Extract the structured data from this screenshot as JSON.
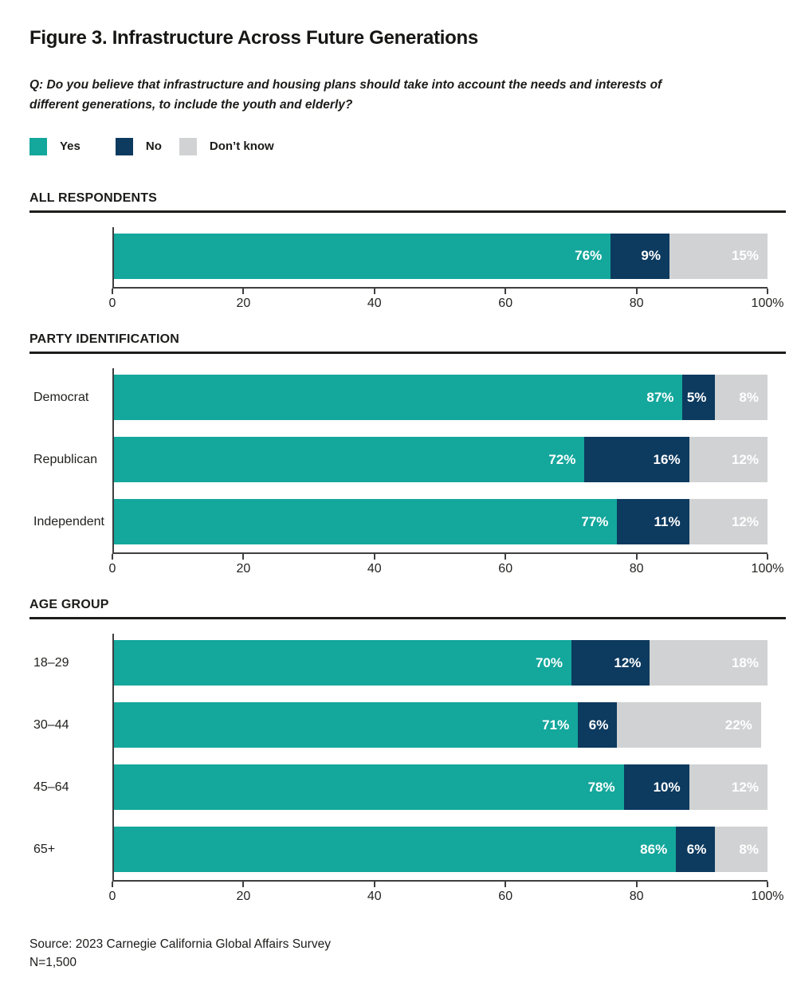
{
  "page": {
    "title": "Figure 3. Infrastructure Across Future Generations",
    "question": "Q: Do you believe that infrastructure and housing plans should take into account the needs and interests of different generations, to include the youth and elderly?",
    "source": "Source: 2023 Carnegie California Global Affairs Survey",
    "sample_size": "N=1,500"
  },
  "colors": {
    "yes": "#14a79c",
    "no": "#0d3a5f",
    "dont_know": "#d0d2d3",
    "text": "#1b1b19",
    "axis": "#3f3f41",
    "bar_label": "#ffffff"
  },
  "legend": [
    {
      "label": "Yes",
      "color": "#14a79c"
    },
    {
      "label": "No",
      "color": "#0d3a5f"
    },
    {
      "label": "Don’t know",
      "color": "#d0d2d3"
    }
  ],
  "chart_data": [
    {
      "type": "bar",
      "stacked": true,
      "orientation": "horizontal",
      "section": "ALL RESPONDENTS",
      "categories": [
        ""
      ],
      "series": [
        {
          "name": "Yes",
          "color": "#14a79c",
          "values": [
            76
          ]
        },
        {
          "name": "No",
          "color": "#0d3a5f",
          "values": [
            9
          ]
        },
        {
          "name": "Don't know",
          "color": "#d0d2d3",
          "values": [
            15
          ]
        }
      ],
      "xlim": [
        0,
        100
      ],
      "x_ticks": [
        "0",
        "20",
        "40",
        "60",
        "80",
        "100%"
      ],
      "grid": false,
      "legend_position": "top"
    },
    {
      "type": "bar",
      "stacked": true,
      "orientation": "horizontal",
      "section": "PARTY IDENTIFICATION",
      "categories": [
        "Democrat",
        "Republican",
        "Independent"
      ],
      "series": [
        {
          "name": "Yes",
          "color": "#14a79c",
          "values": [
            87,
            72,
            77
          ]
        },
        {
          "name": "No",
          "color": "#0d3a5f",
          "values": [
            5,
            16,
            11
          ]
        },
        {
          "name": "Don't know",
          "color": "#d0d2d3",
          "values": [
            8,
            12,
            12
          ]
        }
      ],
      "xlim": [
        0,
        100
      ],
      "x_ticks": [
        "0",
        "20",
        "40",
        "60",
        "80",
        "100%"
      ],
      "grid": false,
      "legend_position": "top"
    },
    {
      "type": "bar",
      "stacked": true,
      "orientation": "horizontal",
      "section": "AGE GROUP",
      "categories": [
        "18–29",
        "30–44",
        "45–64",
        "65+"
      ],
      "series": [
        {
          "name": "Yes",
          "color": "#14a79c",
          "values": [
            70,
            71,
            78,
            86
          ]
        },
        {
          "name": "No",
          "color": "#0d3a5f",
          "values": [
            12,
            6,
            10,
            6
          ]
        },
        {
          "name": "Don't know",
          "color": "#d0d2d3",
          "values": [
            18,
            22,
            12,
            8
          ]
        }
      ],
      "xlim": [
        0,
        100
      ],
      "x_ticks": [
        "0",
        "20",
        "40",
        "60",
        "80",
        "100%"
      ],
      "grid": false,
      "legend_position": "top"
    }
  ]
}
